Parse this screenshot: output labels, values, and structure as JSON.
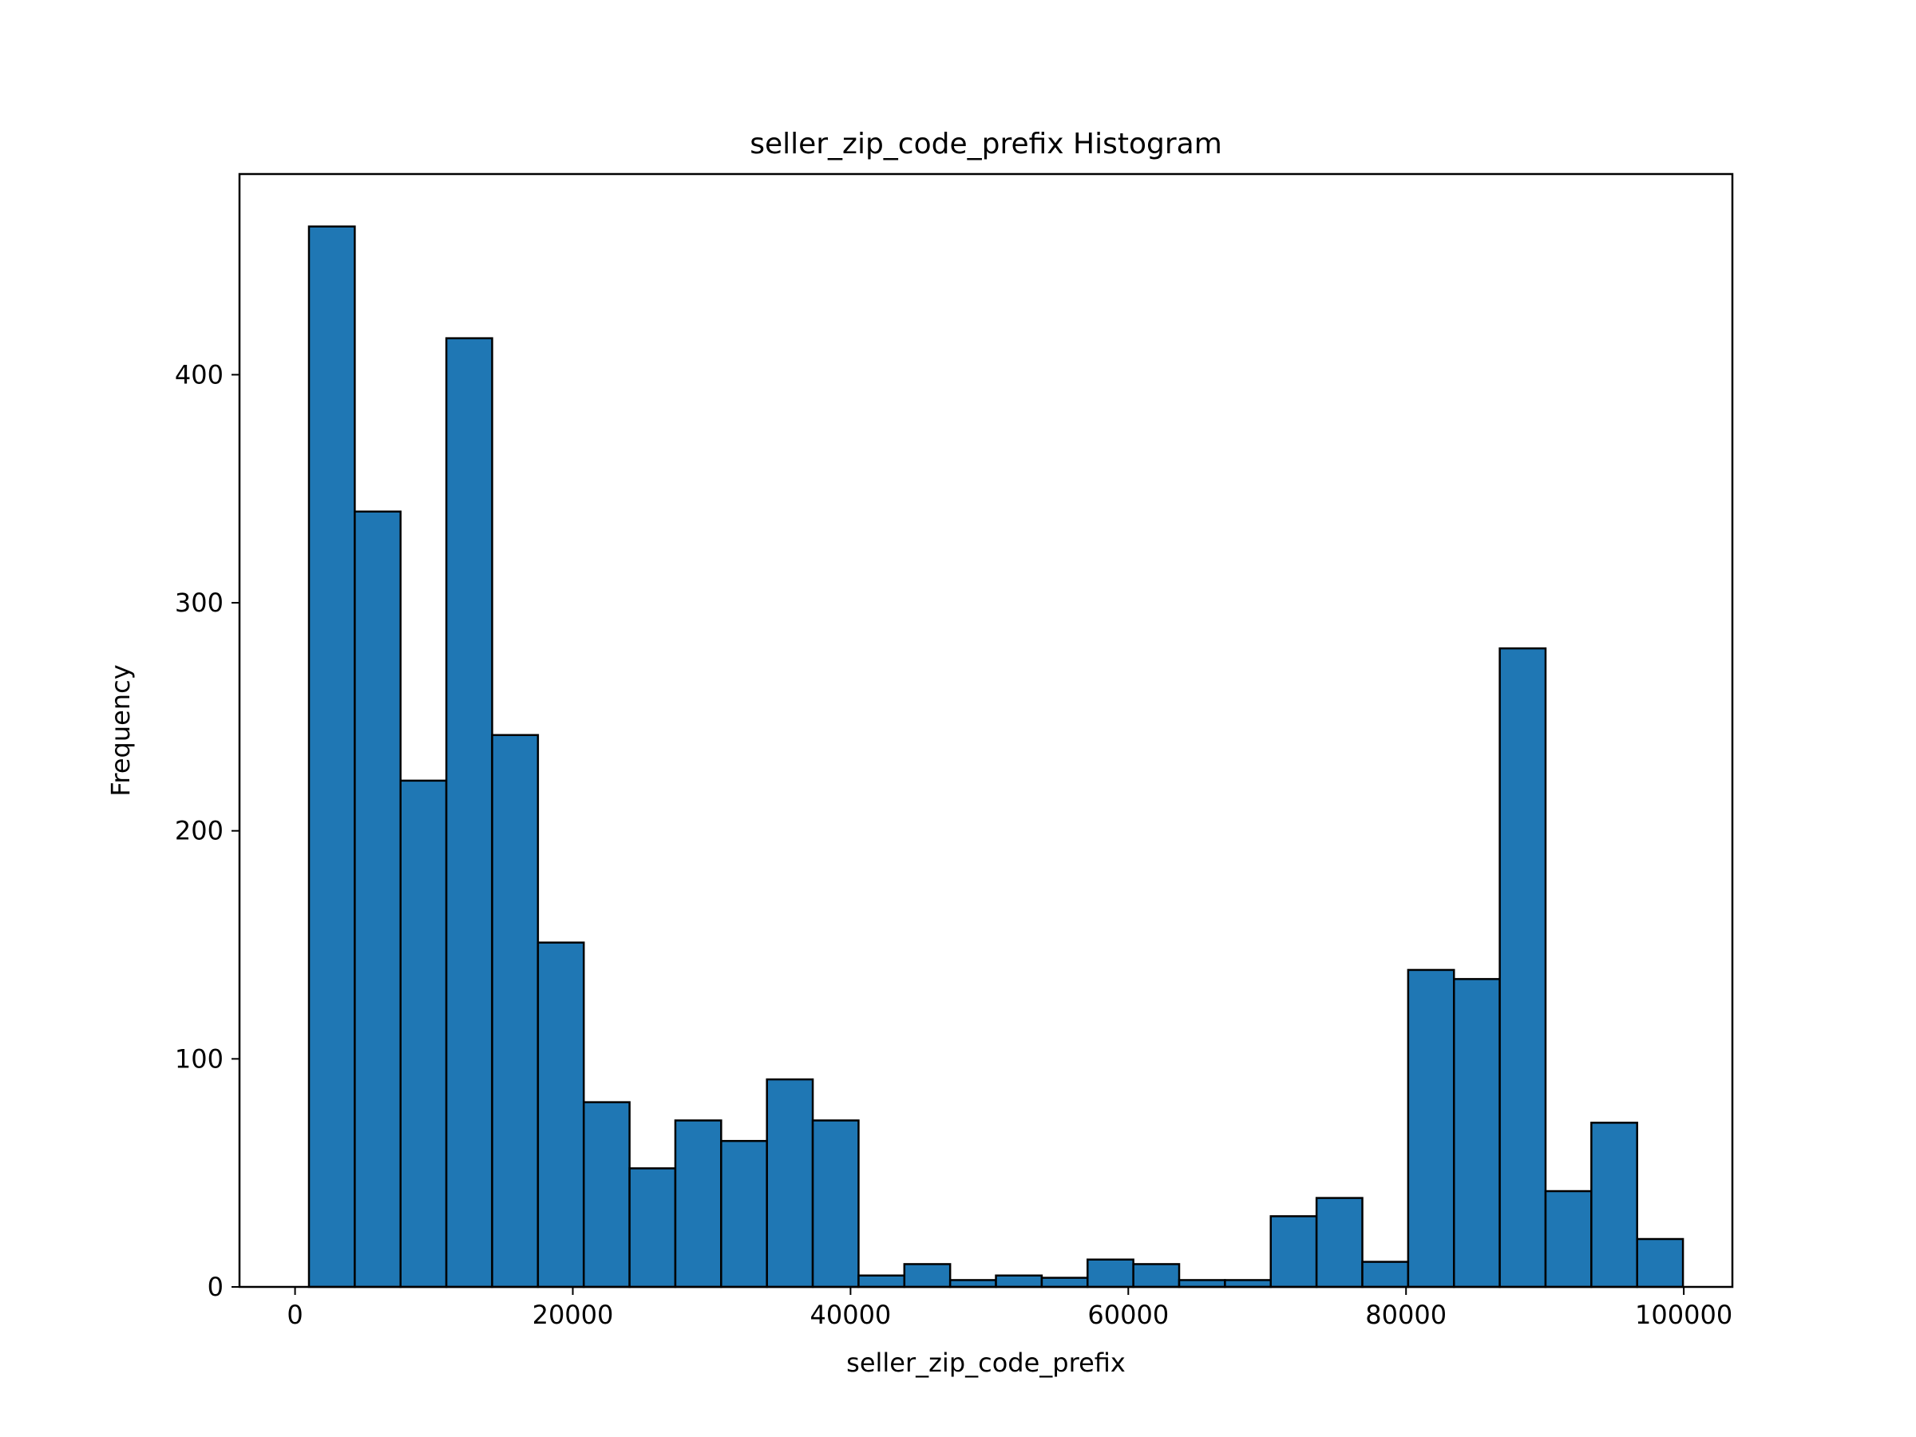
{
  "chart_data": {
    "type": "bar",
    "title": "seller_zip_code_prefix Histogram",
    "xlabel": "seller_zip_code_prefix",
    "ylabel": "Frequency",
    "xlim": [
      -4000,
      103500
    ],
    "ylim": [
      0,
      488
    ],
    "grid": false,
    "bar_color": "#1f77b4",
    "edge_color": "#000000",
    "bin_start": 1001,
    "bin_width": 3298,
    "values": [
      465,
      340,
      222,
      416,
      242,
      151,
      81,
      52,
      73,
      64,
      91,
      73,
      5,
      10,
      3,
      5,
      4,
      12,
      10,
      3,
      3,
      31,
      39,
      11,
      139,
      135,
      280,
      42,
      72,
      21
    ],
    "x_ticks": [
      0,
      20000,
      40000,
      60000,
      80000,
      100000
    ],
    "x_tick_labels": [
      "0",
      "20000",
      "40000",
      "60000",
      "80000",
      "100000"
    ],
    "y_ticks": [
      0,
      100,
      200,
      300,
      400
    ],
    "y_tick_labels": [
      "0",
      "100",
      "200",
      "300",
      "400"
    ]
  }
}
